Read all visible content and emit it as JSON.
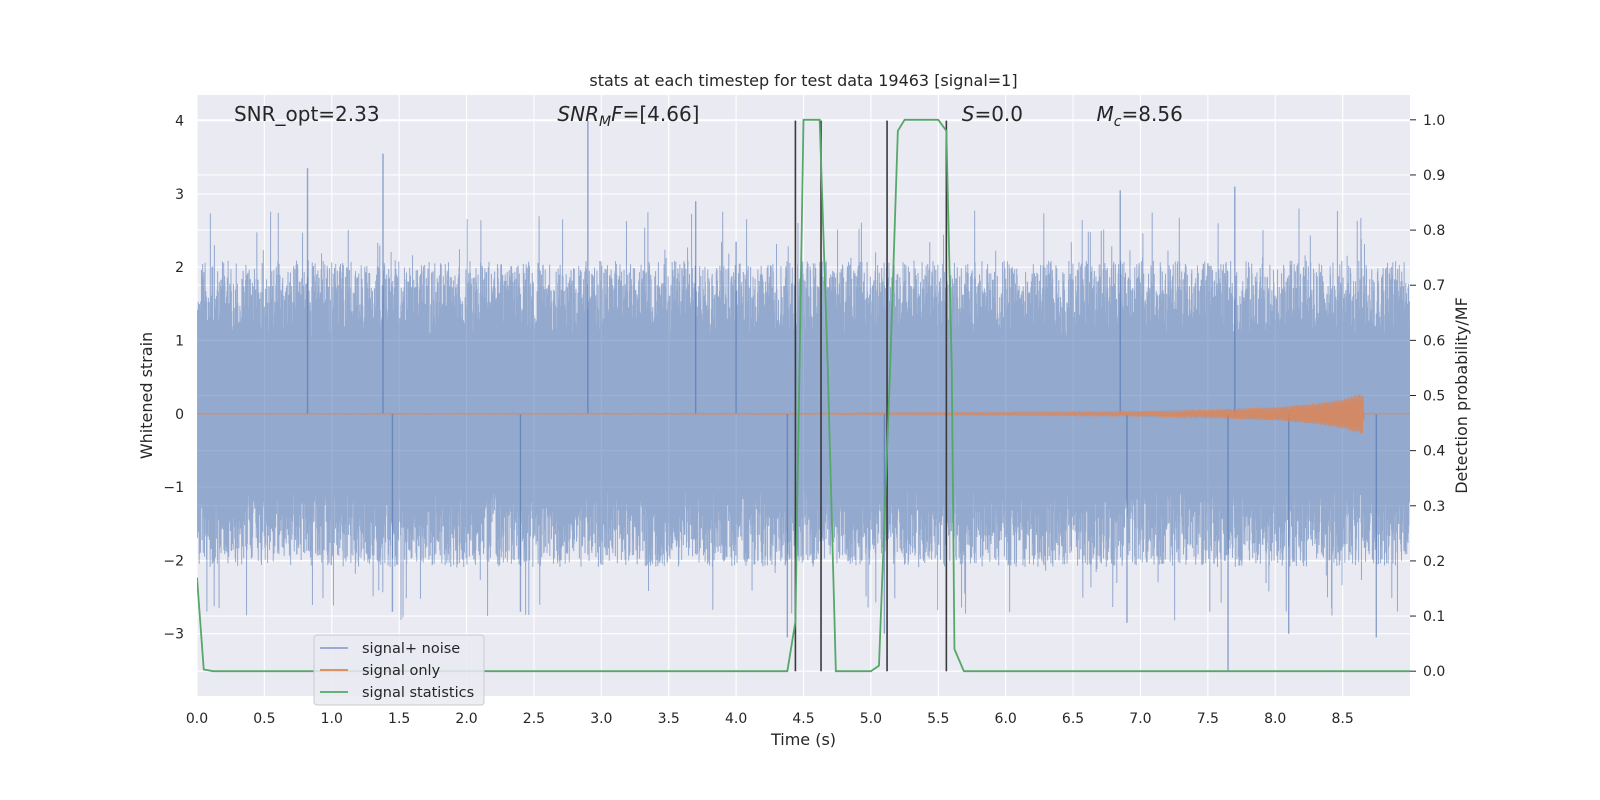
{
  "chart_data": {
    "type": "line",
    "title": "stats at each timestep for test data 19463 [signal=1]",
    "xlabel": "Time (s)",
    "ylabel": "Whitened strain",
    "y2label": "Detection probability/MF",
    "xlim": [
      0,
      9.0
    ],
    "ylim": [
      -3.85,
      4.35
    ],
    "y2lim": [
      -0.045,
      1.045
    ],
    "x_ticks": [
      "0.0",
      "0.5",
      "1.0",
      "1.5",
      "2.0",
      "2.5",
      "3.0",
      "3.5",
      "4.0",
      "4.5",
      "5.0",
      "5.5",
      "6.0",
      "6.5",
      "7.0",
      "7.5",
      "8.0",
      "8.5"
    ],
    "y_ticks": [
      "−3",
      "−2",
      "−1",
      "0",
      "1",
      "2",
      "3",
      "4"
    ],
    "y2_ticks": [
      "0.0",
      "0.1",
      "0.2",
      "0.3",
      "0.4",
      "0.5",
      "0.6",
      "0.7",
      "0.8",
      "0.9",
      "1.0"
    ],
    "grid": true,
    "legend_position": "lower-left",
    "annotations": [
      {
        "text": "SNR_opt=2.33",
        "x": 0.2,
        "y": 4.1
      },
      {
        "text": "SNR_MF=[4.66]",
        "x": 2.6,
        "y": 4.1
      },
      {
        "text": "S=0.0",
        "x": 5.6,
        "y": 4.1
      },
      {
        "text": "M_c=8.56",
        "x": 6.6,
        "y": 4.1
      }
    ],
    "series": [
      {
        "name": "signal+ noise",
        "color": "#4c72b0",
        "axis": "left",
        "x_range": [
          0,
          9.0
        ],
        "envelope_upper_typical": 1.9,
        "envelope_lower_typical": -1.9,
        "peaks": [
          {
            "x": 0.82,
            "y": 3.35
          },
          {
            "x": 1.38,
            "y": 3.55
          },
          {
            "x": 2.9,
            "y": 4.0
          },
          {
            "x": 3.7,
            "y": 2.9
          },
          {
            "x": 4.0,
            "y": 2.35
          },
          {
            "x": 6.85,
            "y": 3.05
          },
          {
            "x": 7.7,
            "y": 3.1
          },
          {
            "x": 1.45,
            "y": -2.7
          },
          {
            "x": 2.4,
            "y": -2.7
          },
          {
            "x": 4.38,
            "y": -3.05
          },
          {
            "x": 5.1,
            "y": -3.0
          },
          {
            "x": 6.9,
            "y": -2.85
          },
          {
            "x": 7.65,
            "y": -3.5
          },
          {
            "x": 8.1,
            "y": -3.0
          },
          {
            "x": 8.75,
            "y": -3.05
          }
        ]
      },
      {
        "name": "signal only",
        "color": "#dd8452",
        "axis": "left",
        "x": [
          0,
          4.5,
          5.0,
          6.0,
          7.0,
          7.5,
          8.0,
          8.3,
          8.5,
          8.6,
          8.65,
          8.66,
          9.0
        ],
        "amplitude": [
          0.003,
          0.006,
          0.012,
          0.02,
          0.03,
          0.05,
          0.09,
          0.14,
          0.2,
          0.26,
          0.28,
          0,
          0
        ]
      },
      {
        "name": "signal statistics",
        "color": "#55a868",
        "axis": "right",
        "x": [
          0.0,
          0.05,
          0.12,
          4.38,
          4.44,
          4.5,
          4.62,
          4.68,
          4.74,
          5.0,
          5.06,
          5.14,
          5.2,
          5.25,
          5.5,
          5.56,
          5.6,
          5.62,
          5.69,
          9.0
        ],
        "y": [
          0.17,
          0.003,
          0.0,
          0.0,
          0.09,
          1.0,
          1.0,
          0.55,
          0.0,
          0.0,
          0.01,
          0.53,
          0.98,
          1.0,
          1.0,
          0.98,
          0.55,
          0.04,
          0.0,
          0.0
        ]
      }
    ],
    "vertical_lines": {
      "color": "#3a3a3a",
      "x": [
        4.44,
        4.63,
        5.12,
        5.56
      ],
      "y_top": 4.0
    }
  }
}
